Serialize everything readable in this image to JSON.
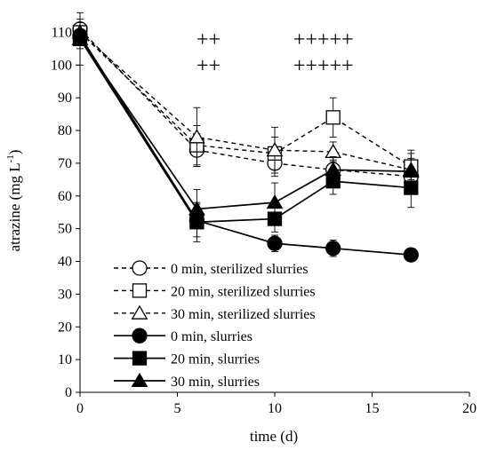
{
  "chart_data": {
    "type": "line",
    "title": "",
    "xlabel": "time (d)",
    "ylabel_main": "atrazine (mg L",
    "ylabel_sup": "-1",
    "ylabel_close": ")",
    "xlim": [
      0,
      20
    ],
    "ylim": [
      0,
      115
    ],
    "xticks": [
      0,
      5,
      10,
      15,
      20
    ],
    "yticks": [
      0,
      10,
      20,
      30,
      40,
      50,
      60,
      70,
      80,
      90,
      100,
      110
    ],
    "grid": false,
    "legend_position": "bottom-left",
    "series": [
      {
        "name": "0 min, sterilized slurries",
        "marker": "circle",
        "fill": "open",
        "dash": true,
        "x": [
          0,
          6,
          10,
          13,
          17
        ],
        "y": [
          111,
          74,
          70,
          68,
          66
        ],
        "err": [
          3,
          5,
          4,
          3,
          3
        ]
      },
      {
        "name": "20 min, sterilized slurries",
        "marker": "square",
        "fill": "open",
        "dash": true,
        "x": [
          0,
          6,
          10,
          13,
          17
        ],
        "y": [
          110,
          75.5,
          73,
          84,
          69
        ],
        "err": [
          3,
          6,
          5,
          6,
          4
        ]
      },
      {
        "name": "30 min, sterilized slurries",
        "marker": "triangle",
        "fill": "open",
        "dash": true,
        "x": [
          0,
          6,
          10,
          13,
          17
        ],
        "y": [
          110,
          78,
          74,
          73.5,
          68
        ],
        "err": [
          3,
          9,
          7,
          3,
          6
        ]
      },
      {
        "name": "0 min, slurries",
        "marker": "circle",
        "fill": "solid",
        "dash": false,
        "x": [
          0,
          6,
          10,
          13,
          17
        ],
        "y": [
          109,
          52.5,
          45.5,
          44,
          42
        ],
        "err": [
          3,
          5,
          2.5,
          2.5,
          0
        ]
      },
      {
        "name": "20 min, slurries",
        "marker": "square",
        "fill": "solid",
        "dash": false,
        "x": [
          0,
          6,
          10,
          13,
          17
        ],
        "y": [
          108,
          52,
          53,
          64.5,
          62.5
        ],
        "err": [
          8,
          6,
          4,
          4,
          6
        ]
      },
      {
        "name": "30 min, slurries",
        "marker": "triangle",
        "fill": "solid",
        "dash": false,
        "x": [
          0,
          6,
          10,
          13,
          17
        ],
        "y": [
          108,
          56,
          58,
          68,
          67.5
        ],
        "err": [
          3,
          6,
          6,
          4,
          4
        ]
      }
    ],
    "annotations": [
      {
        "text": "++",
        "x": 6.6,
        "y": 108
      },
      {
        "text": "++",
        "x": 6.6,
        "y": 100
      },
      {
        "text": "+++++",
        "x": 12.5,
        "y": 108
      },
      {
        "text": "+++++",
        "x": 12.5,
        "y": 100
      }
    ]
  }
}
